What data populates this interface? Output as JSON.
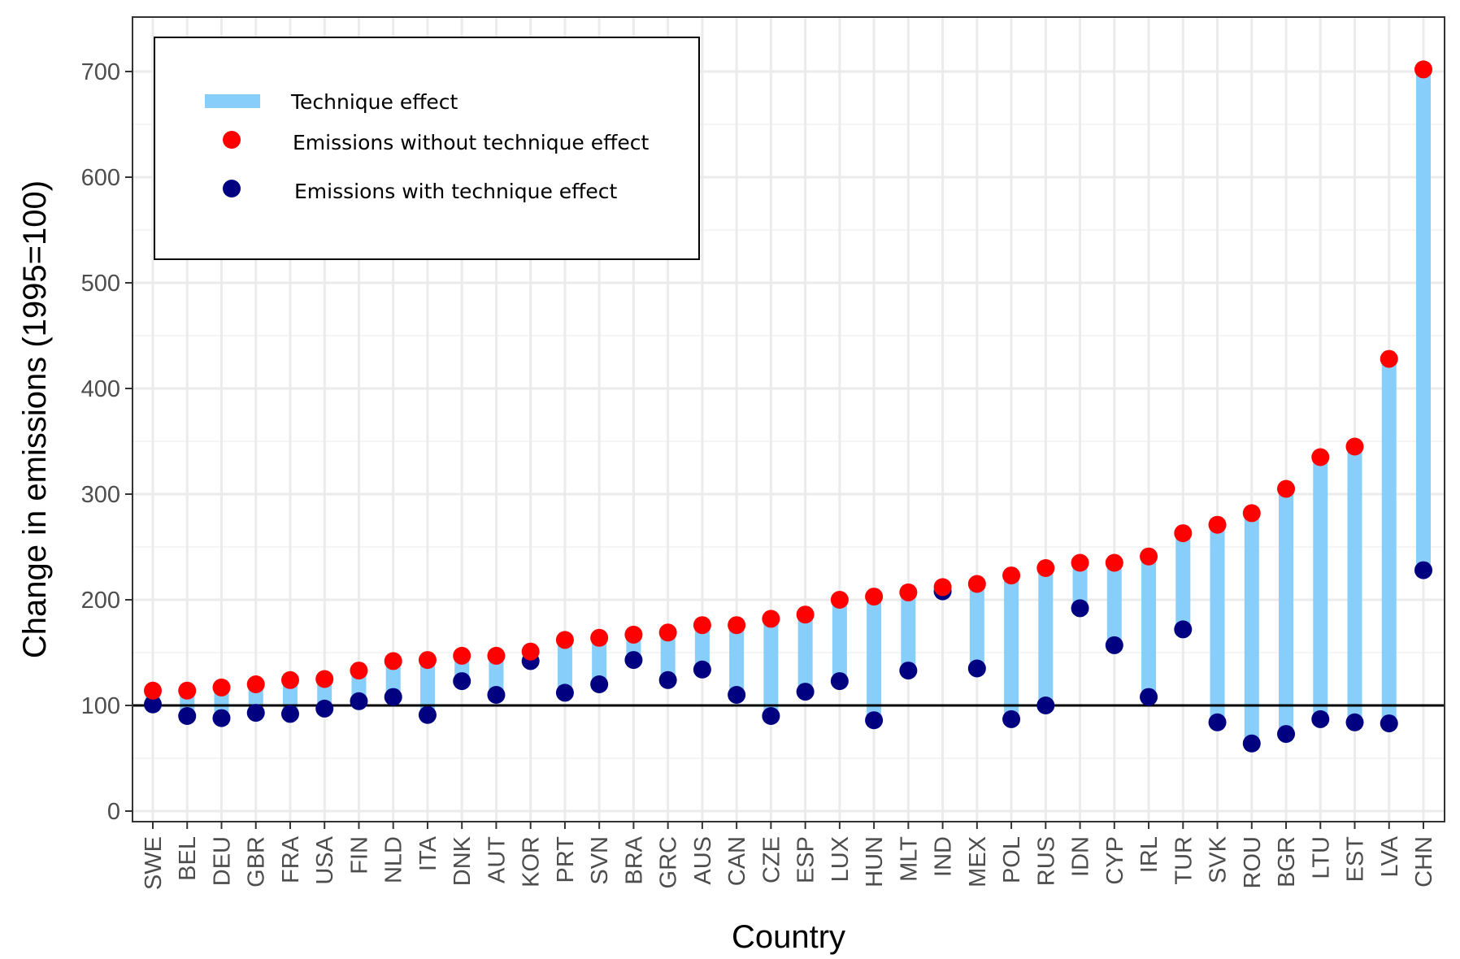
{
  "chart_data": {
    "type": "dumbbell",
    "xlabel": "Country",
    "ylabel": "Change in emissions (1995=100)",
    "ylim": [
      0,
      750
    ],
    "yticks": [
      0,
      100,
      200,
      300,
      400,
      500,
      600,
      700
    ],
    "reference_line": 100,
    "grid": true,
    "legend_position": "top-left",
    "categories": [
      "SWE",
      "BEL",
      "DEU",
      "GBR",
      "FRA",
      "USA",
      "FIN",
      "NLD",
      "ITA",
      "DNK",
      "AUT",
      "KOR",
      "PRT",
      "SVN",
      "BRA",
      "GRC",
      "AUS",
      "CAN",
      "CZE",
      "ESP",
      "LUX",
      "HUN",
      "MLT",
      "IND",
      "MEX",
      "POL",
      "RUS",
      "IDN",
      "CYP",
      "IRL",
      "TUR",
      "SVK",
      "ROU",
      "BGR",
      "LTU",
      "EST",
      "LVA",
      "CHN"
    ],
    "series": [
      {
        "name": "Emissions without technique effect",
        "color": "#ff0000",
        "values": [
          114,
          114,
          117,
          120,
          124,
          125,
          133,
          142,
          143,
          147,
          147,
          151,
          162,
          164,
          167,
          169,
          176,
          176,
          182,
          186,
          200,
          203,
          207,
          212,
          215,
          223,
          230,
          235,
          235,
          241,
          263,
          271,
          282,
          305,
          335,
          345,
          428,
          702
        ]
      },
      {
        "name": "Emissions with technique effect",
        "color": "#000080",
        "values": [
          101,
          90,
          88,
          93,
          92,
          97,
          104,
          108,
          91,
          123,
          110,
          142,
          112,
          120,
          143,
          124,
          134,
          110,
          90,
          113,
          123,
          86,
          133,
          208,
          135,
          87,
          100,
          192,
          157,
          108,
          172,
          84,
          64,
          73,
          87,
          84,
          83,
          228
        ]
      }
    ],
    "range_series": {
      "name": "Technique effect",
      "color": "#87cefa"
    },
    "legend": {
      "items": [
        {
          "label": "Technique effect",
          "symbol": "bar",
          "color": "#87cefa"
        },
        {
          "label": "Emissions without technique effect",
          "symbol": "dot",
          "color": "#ff0000"
        },
        {
          "label": "Emissions with technique effect",
          "symbol": "dot",
          "color": "#000080"
        }
      ]
    }
  }
}
